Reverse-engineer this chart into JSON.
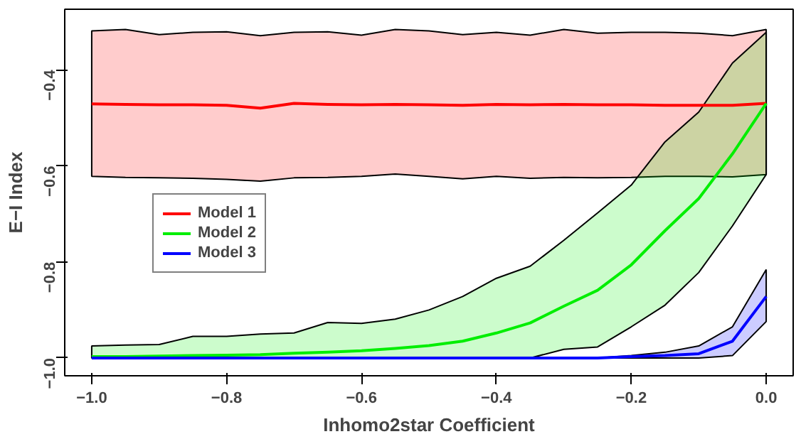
{
  "chart_data": {
    "type": "line",
    "xlabel": "Inhomo2star Coefficient",
    "ylabel": "E−I Index",
    "x": [
      -1.0,
      -0.95,
      -0.9,
      -0.85,
      -0.8,
      -0.75,
      -0.7,
      -0.65,
      -0.6,
      -0.55,
      -0.5,
      -0.45,
      -0.4,
      -0.35,
      -0.3,
      -0.25,
      -0.2,
      -0.15,
      -0.1,
      -0.05,
      0.0
    ],
    "series": [
      {
        "name": "Model 1",
        "color": "#ff0000",
        "values": [
          -0.471,
          -0.472,
          -0.473,
          -0.473,
          -0.474,
          -0.48,
          -0.47,
          -0.472,
          -0.473,
          -0.472,
          -0.473,
          -0.474,
          -0.472,
          -0.473,
          -0.472,
          -0.473,
          -0.473,
          -0.474,
          -0.474,
          -0.474,
          -0.47
        ],
        "upper": [
          -0.319,
          -0.316,
          -0.327,
          -0.322,
          -0.321,
          -0.329,
          -0.322,
          -0.321,
          -0.328,
          -0.316,
          -0.319,
          -0.327,
          -0.322,
          -0.328,
          -0.316,
          -0.324,
          -0.322,
          -0.322,
          -0.324,
          -0.329,
          -0.316
        ],
        "lower": [
          -0.622,
          -0.624,
          -0.625,
          -0.626,
          -0.628,
          -0.632,
          -0.625,
          -0.624,
          -0.622,
          -0.617,
          -0.622,
          -0.627,
          -0.622,
          -0.626,
          -0.624,
          -0.625,
          -0.624,
          -0.622,
          -0.622,
          -0.623,
          -0.618
        ]
      },
      {
        "name": "Model 2",
        "color": "#00ee00",
        "values": [
          -0.997,
          -0.997,
          -0.996,
          -0.995,
          -0.994,
          -0.993,
          -0.99,
          -0.988,
          -0.985,
          -0.98,
          -0.974,
          -0.965,
          -0.948,
          -0.927,
          -0.892,
          -0.859,
          -0.806,
          -0.735,
          -0.668,
          -0.575,
          -0.47
        ],
        "upper": [
          -0.975,
          -0.973,
          -0.972,
          -0.955,
          -0.955,
          -0.95,
          -0.948,
          -0.926,
          -0.928,
          -0.919,
          -0.9,
          -0.872,
          -0.834,
          -0.809,
          -0.755,
          -0.698,
          -0.64,
          -0.55,
          -0.488,
          -0.386,
          -0.322
        ],
        "lower": [
          -1.0,
          -1.0,
          -1.0,
          -1.0,
          -1.0,
          -1.0,
          -1.0,
          -1.0,
          -1.0,
          -1.0,
          -1.0,
          -1.0,
          -1.0,
          -1.0,
          -0.982,
          -0.977,
          -0.935,
          -0.89,
          -0.822,
          -0.725,
          -0.618
        ]
      },
      {
        "name": "Model 3",
        "color": "#0000ff",
        "values": [
          -1.0,
          -1.0,
          -1.0,
          -1.0,
          -1.0,
          -1.0,
          -1.0,
          -1.0,
          -1.0,
          -1.0,
          -1.0,
          -1.0,
          -1.0,
          -1.0,
          -1.0,
          -1.0,
          -0.997,
          -0.995,
          -0.991,
          -0.965,
          -0.872
        ],
        "upper": [
          -1.0,
          -1.0,
          -1.0,
          -1.0,
          -1.0,
          -1.0,
          -1.0,
          -1.0,
          -1.0,
          -1.0,
          -1.0,
          -1.0,
          -1.0,
          -1.0,
          -1.0,
          -1.0,
          -0.995,
          -0.988,
          -0.975,
          -0.935,
          -0.816
        ],
        "lower": [
          -1.0,
          -1.0,
          -1.0,
          -1.0,
          -1.0,
          -1.0,
          -1.0,
          -1.0,
          -1.0,
          -1.0,
          -1.0,
          -1.0,
          -1.0,
          -1.0,
          -1.0,
          -1.0,
          -1.0,
          -1.0,
          -1.0,
          -0.995,
          -0.924
        ]
      }
    ],
    "xlim": [
      -1.04,
      0.04
    ],
    "ylim": [
      -1.037,
      -0.274
    ],
    "xticks": [
      {
        "value": -1.0,
        "label": "−1.0"
      },
      {
        "value": -0.8,
        "label": "−0.8"
      },
      {
        "value": -0.6,
        "label": "−0.6"
      },
      {
        "value": -0.4,
        "label": "−0.4"
      },
      {
        "value": -0.2,
        "label": "−0.2"
      },
      {
        "value": 0.0,
        "label": "0.0"
      }
    ],
    "yticks": [
      {
        "value": -1.0,
        "label": "−1.0"
      },
      {
        "value": -0.8,
        "label": "−0.8"
      },
      {
        "value": -0.6,
        "label": "−0.6"
      },
      {
        "value": -0.4,
        "label": "−0.4"
      }
    ],
    "legend": "left",
    "grid": false
  }
}
